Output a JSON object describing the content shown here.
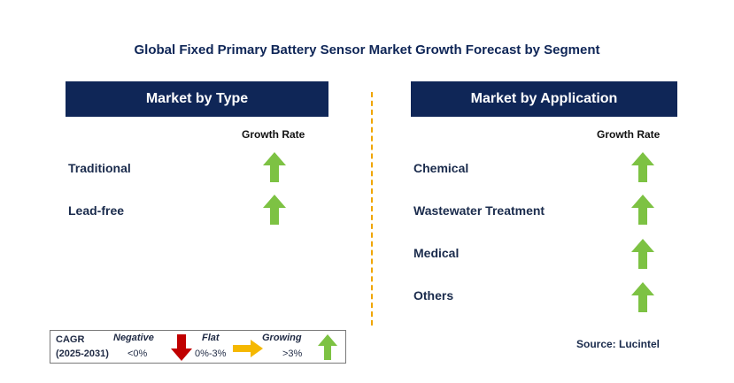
{
  "title": "Global Fixed Primary Battery Sensor Market Growth Forecast by Segment",
  "left_panel": {
    "header": "Market by Type",
    "growth_header": "Growth Rate",
    "items": [
      {
        "label": "Traditional",
        "trend": "growing"
      },
      {
        "label": "Lead-free",
        "trend": "growing"
      }
    ]
  },
  "right_panel": {
    "header": "Market by Application",
    "growth_header": "Growth Rate",
    "items": [
      {
        "label": "Chemical",
        "trend": "growing"
      },
      {
        "label": "Wastewater Treatment",
        "trend": "growing"
      },
      {
        "label": "Medical",
        "trend": "growing"
      },
      {
        "label": "Others",
        "trend": "growing"
      }
    ]
  },
  "legend": {
    "cagr": "CAGR",
    "period": "(2025-2031)",
    "negative": "Negative",
    "negative_range": "<0%",
    "flat": "Flat",
    "flat_range": "0%-3%",
    "growing": "Growing",
    "growing_range": ">3%"
  },
  "source": "Source: Lucintel",
  "colors": {
    "header_bg": "#0f2657",
    "growing": "#7dc243",
    "negative": "#c00000",
    "flat": "#f5b800",
    "divider": "#f0a500"
  }
}
